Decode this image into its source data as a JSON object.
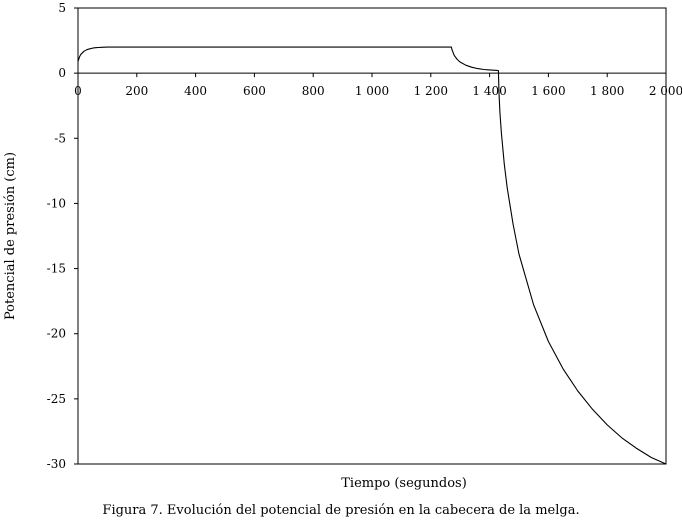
{
  "caption": "Figura 7. Evolución del potencial de presión en la cabecera de la melga.",
  "chart_data": {
    "type": "line",
    "xlabel": "Tiempo (segundos)",
    "ylabel": "Potencial de presión (cm)",
    "xlim": [
      0,
      2000
    ],
    "ylim": [
      -30,
      5
    ],
    "xticks": [
      0,
      200,
      400,
      600,
      800,
      1000,
      1200,
      1400,
      1600,
      1800,
      2000
    ],
    "xtick_labels": [
      "0",
      "200",
      "400",
      "600",
      "800",
      "1 000",
      "1 200",
      "1 400",
      "1 600",
      "1 800",
      "2 000"
    ],
    "yticks": [
      5,
      0,
      -5,
      -10,
      -15,
      -20,
      -25,
      -30
    ],
    "ytick_labels": [
      "5",
      "0",
      "-5",
      "-10",
      "-15",
      "-20",
      "-25",
      "-30"
    ],
    "x_axis_position": "at y = 0",
    "grid": false,
    "series": [
      {
        "color": "#000000",
        "x": [
          0,
          5,
          10,
          20,
          30,
          40,
          50,
          60,
          70,
          80,
          100,
          1270,
          1272,
          1280,
          1290,
          1300,
          1320,
          1340,
          1360,
          1380,
          1400,
          1420,
          1430,
          1432,
          1435,
          1440,
          1450,
          1460,
          1480,
          1500,
          1550,
          1600,
          1650,
          1700,
          1750,
          1800,
          1850,
          1900,
          1950,
          2000
        ],
        "y": [
          0.9,
          1.25,
          1.45,
          1.68,
          1.8,
          1.87,
          1.92,
          1.95,
          1.97,
          1.98,
          2.0,
          2.0,
          1.8,
          1.35,
          1.05,
          0.85,
          0.6,
          0.45,
          0.35,
          0.28,
          0.25,
          0.22,
          0.2,
          -1.5,
          -3.0,
          -4.6,
          -7.0,
          -8.8,
          -11.6,
          -13.9,
          -17.8,
          -20.6,
          -22.7,
          -24.4,
          -25.8,
          -27.0,
          -28.0,
          -28.8,
          -29.5,
          -30.0
        ]
      }
    ]
  }
}
